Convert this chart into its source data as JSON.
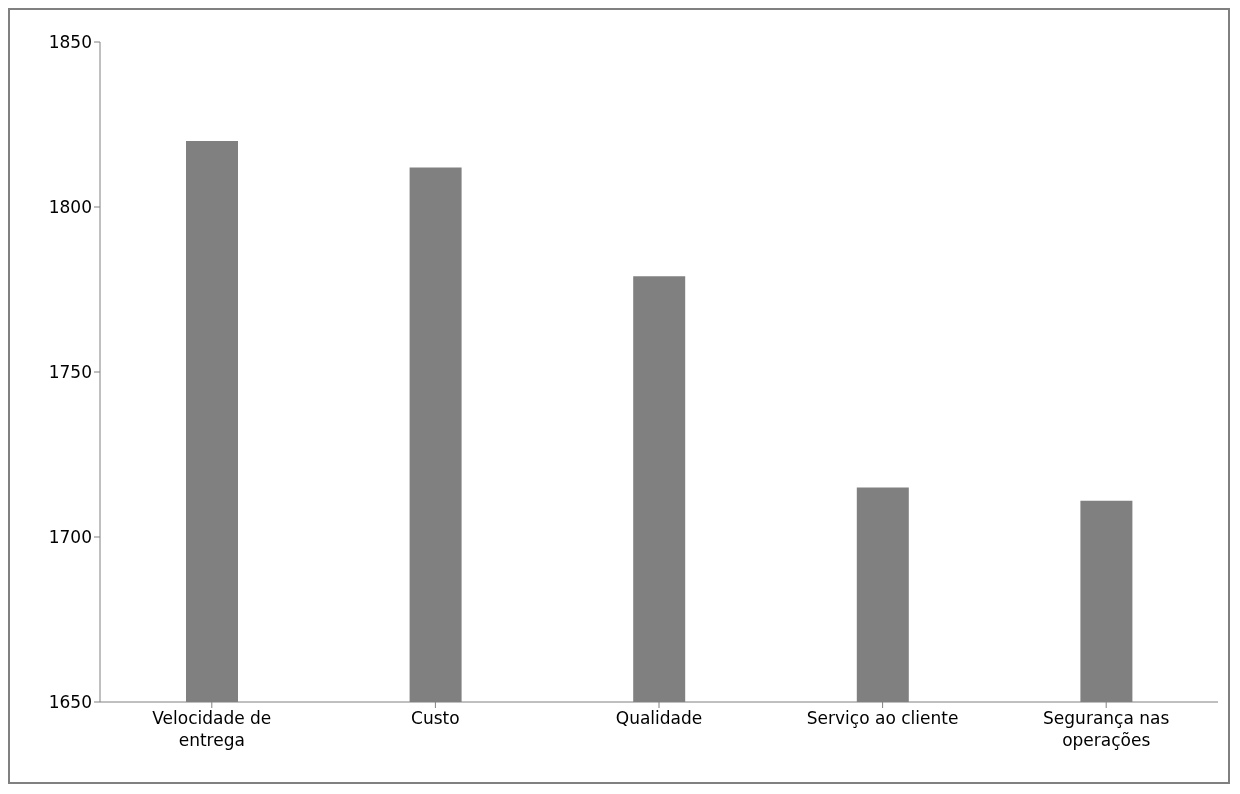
{
  "chart_data": {
    "type": "bar",
    "categories": [
      "Velocidade de entrega",
      "Custo",
      "Qualidade",
      "Serviço ao cliente",
      "Segurança nas operações"
    ],
    "values": [
      1820,
      1812,
      1779,
      1715,
      1711
    ],
    "color": "#808080",
    "ylim": [
      1650,
      1850
    ],
    "yticks": [
      1650,
      1700,
      1750,
      1800,
      1850
    ],
    "grid": false,
    "legend": false
  }
}
